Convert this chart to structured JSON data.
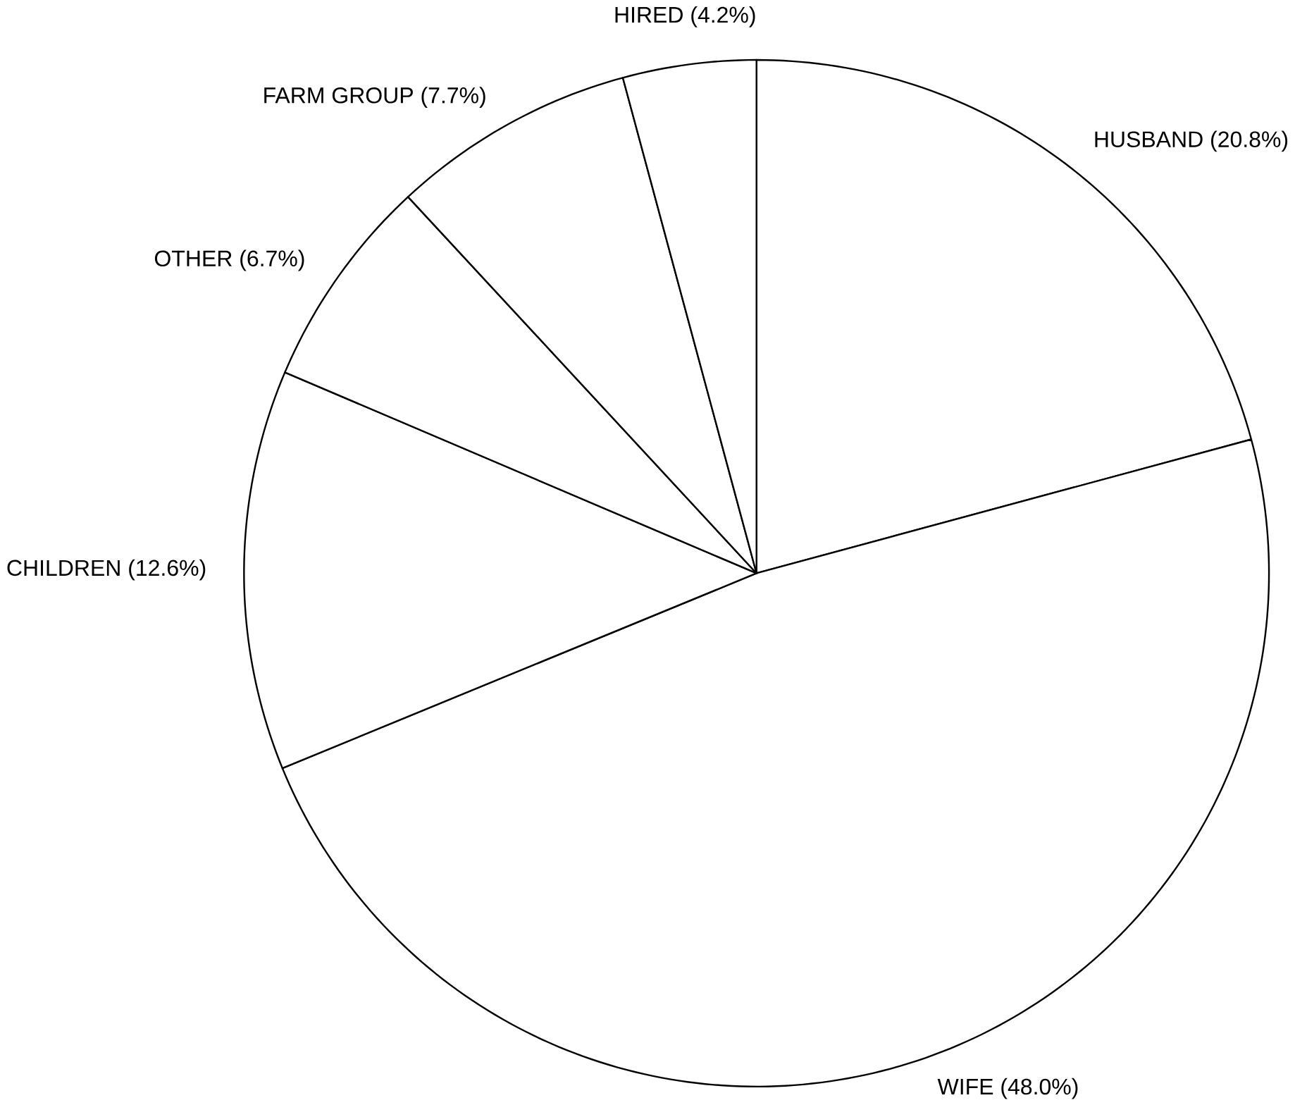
{
  "chart_data": {
    "type": "pie",
    "categories": [
      "HUSBAND (20.8%)",
      "WIFE (48.0%)",
      "CHILDREN (12.6%)",
      "OTHER (6.7%)",
      "FARM GROUP (7.7%)",
      "HIRED (4.2%)"
    ],
    "values": [
      20.8,
      48.0,
      12.6,
      6.7,
      7.7,
      4.2
    ],
    "colors": [
      "#ffffff",
      "#ffffff",
      "#ffffff",
      "#ffffff",
      "#ffffff",
      "#ffffff"
    ]
  }
}
